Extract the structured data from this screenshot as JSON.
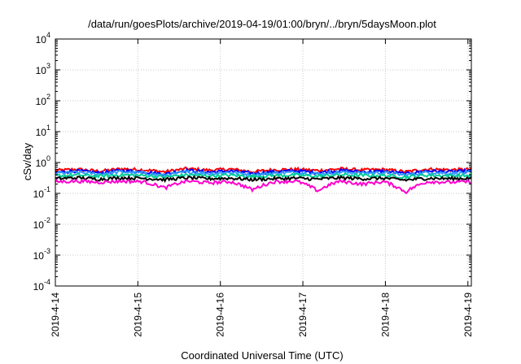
{
  "chart_data": {
    "type": "line",
    "title": "/data/run/goesPlots/archive/2019-04-19/01:00/bryn/../bryn/5daysMoon.plot",
    "xlabel": "Coordinated Universal Time (UTC)",
    "ylabel": "cSv/day",
    "yscale": "log",
    "ylim": [
      0.0001,
      10000
    ],
    "xlim": [
      "2019-04-14",
      "2019-04-19 01:00"
    ],
    "grid": true,
    "legend": "none",
    "x_ticks": [
      "2019-4-14",
      "2019-4-15",
      "2019-4-16",
      "2019-4-17",
      "2019-4-18",
      "2019-4-19"
    ],
    "y_ticks": [
      {
        "base": "10",
        "exp": "-4"
      },
      {
        "base": "10",
        "exp": "-3"
      },
      {
        "base": "10",
        "exp": "-2"
      },
      {
        "base": "10",
        "exp": "-1"
      },
      {
        "base": "10",
        "exp": "0"
      },
      {
        "base": "10",
        "exp": "1"
      },
      {
        "base": "10",
        "exp": "2"
      },
      {
        "base": "10",
        "exp": "3"
      },
      {
        "base": "10",
        "exp": "4"
      }
    ],
    "series": [
      {
        "color": "#ff0000",
        "baseline": 0.58,
        "values": [
          0.55,
          0.6,
          0.52,
          0.62,
          0.58,
          0.5,
          0.63,
          0.56,
          0.61,
          0.5,
          0.58,
          0.6,
          0.55,
          0.62,
          0.57,
          0.59,
          0.5,
          0.61,
          0.58,
          0.6
        ]
      },
      {
        "color": "#0000ff",
        "baseline": 0.52,
        "values": [
          0.48,
          0.54,
          0.46,
          0.55,
          0.5,
          0.42,
          0.56,
          0.49,
          0.53,
          0.44,
          0.5,
          0.54,
          0.47,
          0.55,
          0.5,
          0.52,
          0.43,
          0.54,
          0.5,
          0.53
        ]
      },
      {
        "color": "#3399ff",
        "baseline": 0.47,
        "values": [
          0.45,
          0.48,
          0.42,
          0.5,
          0.46,
          0.38,
          0.5,
          0.44,
          0.48,
          0.4,
          0.46,
          0.48,
          0.43,
          0.49,
          0.46,
          0.47,
          0.39,
          0.48,
          0.45,
          0.47
        ]
      },
      {
        "color": "#00cc99",
        "baseline": 0.38,
        "values": [
          0.37,
          0.39,
          0.36,
          0.4,
          0.38,
          0.34,
          0.4,
          0.37,
          0.39,
          0.35,
          0.38,
          0.39,
          0.36,
          0.4,
          0.38,
          0.38,
          0.34,
          0.39,
          0.37,
          0.38
        ]
      },
      {
        "color": "#000000",
        "baseline": 0.31,
        "values": [
          0.3,
          0.32,
          0.29,
          0.32,
          0.31,
          0.28,
          0.32,
          0.3,
          0.31,
          0.28,
          0.3,
          0.31,
          0.29,
          0.32,
          0.3,
          0.31,
          0.27,
          0.31,
          0.3,
          0.31
        ]
      },
      {
        "color": "#ff00cc",
        "baseline": 0.25,
        "values": [
          0.24,
          0.25,
          0.23,
          0.25,
          0.24,
          0.15,
          0.25,
          0.22,
          0.24,
          0.13,
          0.24,
          0.25,
          0.12,
          0.25,
          0.2,
          0.24,
          0.11,
          0.24,
          0.23,
          0.24
        ]
      }
    ]
  },
  "colors": {
    "grid": "#c8c8c8",
    "axis": "#000000",
    "background": "#ffffff"
  }
}
